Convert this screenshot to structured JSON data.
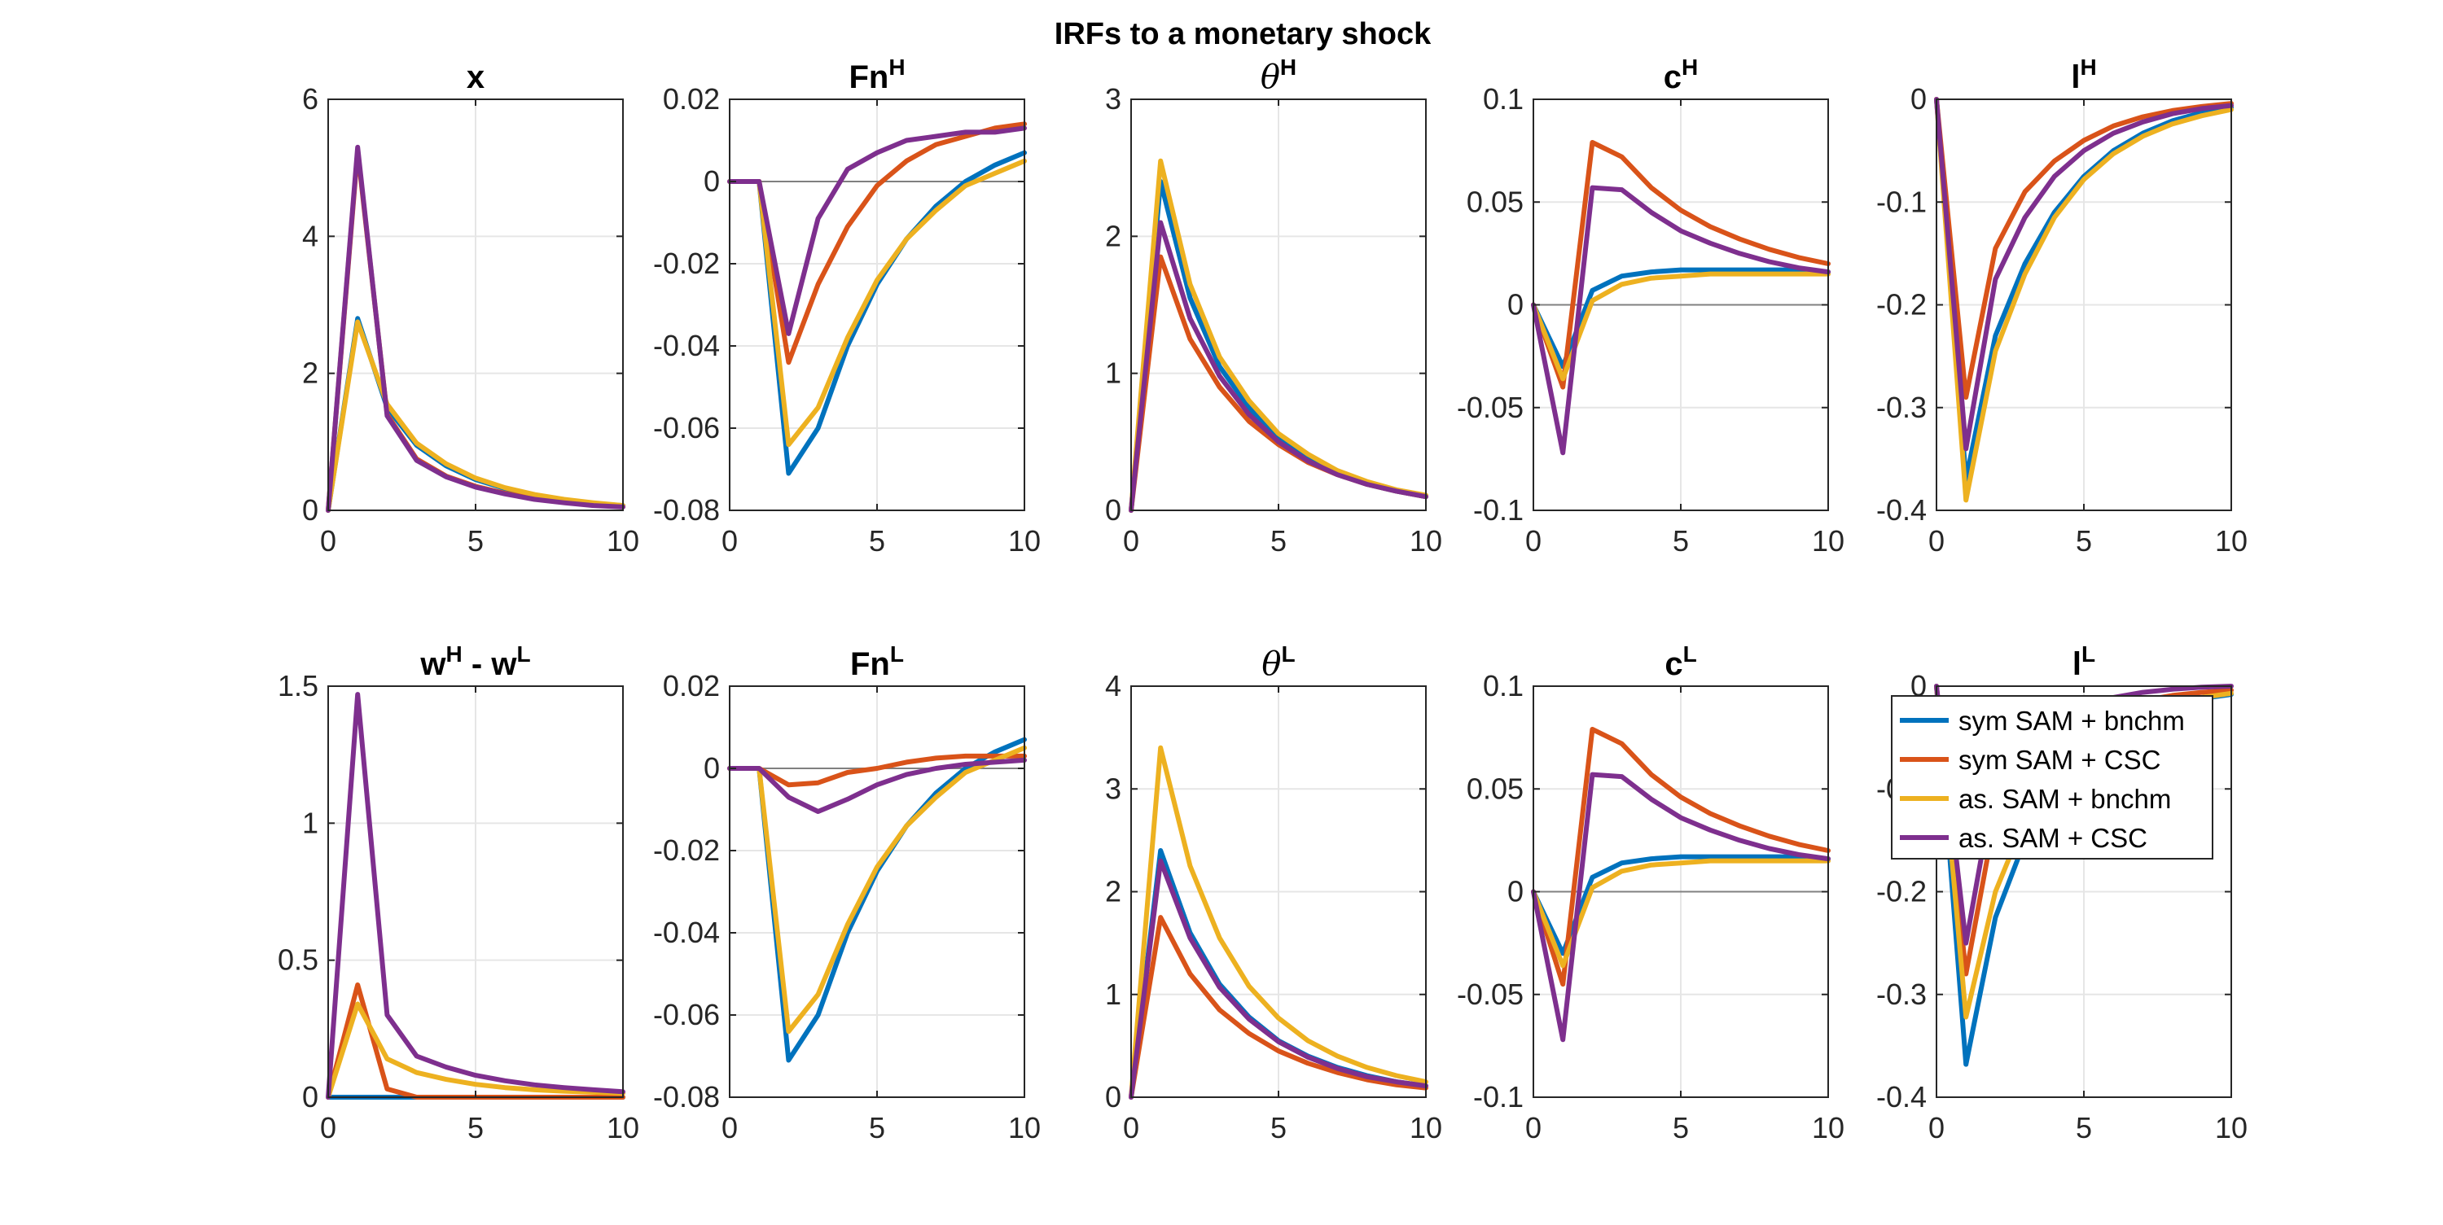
{
  "figure_title": "IRFs to a monetary shock",
  "colors": {
    "sym_bnchm": "#0072BD",
    "sym_csc": "#D95319",
    "as_bnchm": "#EDB120",
    "as_csc": "#7E2F8E",
    "axis": "#262626",
    "grid": "#e6e6e6",
    "zero_line": "#808080"
  },
  "legend": {
    "location": "right, over bottom row lower-right panels",
    "entries": [
      "sym SAM + bnchm",
      "sym SAM + CSC",
      "as. SAM + bnchm",
      "as. SAM + CSC"
    ]
  },
  "chart_data": [
    {
      "type": "line",
      "title": "x",
      "title_parts": {
        "base": "x",
        "sup": ""
      },
      "xlim": [
        0,
        10
      ],
      "ylim": [
        0,
        6
      ],
      "xticks": [
        "0",
        "5",
        "10"
      ],
      "yticks": [
        "0",
        "2",
        "4",
        "6"
      ],
      "x": [
        0,
        1,
        2,
        3,
        4,
        5,
        6,
        7,
        8,
        9,
        10
      ],
      "series": [
        {
          "name": "sym SAM + bnchm",
          "values": [
            0,
            2.8,
            1.5,
            0.95,
            0.65,
            0.45,
            0.32,
            0.22,
            0.15,
            0.1,
            0.07
          ]
        },
        {
          "name": "sym SAM + CSC",
          "values": [
            0,
            5.25,
            1.4,
            0.75,
            0.5,
            0.35,
            0.25,
            0.17,
            0.12,
            0.08,
            0.05
          ]
        },
        {
          "name": "as. SAM + bnchm",
          "values": [
            0,
            2.75,
            1.55,
            0.98,
            0.68,
            0.47,
            0.33,
            0.23,
            0.16,
            0.11,
            0.07
          ]
        },
        {
          "name": "as. SAM + CSC",
          "values": [
            0,
            5.3,
            1.38,
            0.73,
            0.49,
            0.34,
            0.24,
            0.16,
            0.11,
            0.07,
            0.05
          ]
        }
      ]
    },
    {
      "type": "line",
      "title": "FnH",
      "title_parts": {
        "base": "Fn",
        "sup": "H"
      },
      "xlim": [
        0,
        10
      ],
      "ylim": [
        -0.08,
        0.02
      ],
      "zero_line": true,
      "xticks": [
        "0",
        "5",
        "10"
      ],
      "yticks": [
        "-0.08",
        "-0.06",
        "-0.04",
        "-0.02",
        "0",
        "0.02"
      ],
      "x": [
        0,
        1,
        2,
        3,
        4,
        5,
        6,
        7,
        8,
        9,
        10
      ],
      "series": [
        {
          "name": "sym SAM + bnchm",
          "values": [
            0,
            0,
            -0.071,
            -0.06,
            -0.04,
            -0.025,
            -0.014,
            -0.006,
            0.0,
            0.004,
            0.007
          ]
        },
        {
          "name": "sym SAM + CSC",
          "values": [
            0,
            0,
            -0.044,
            -0.025,
            -0.011,
            -0.001,
            0.005,
            0.009,
            0.011,
            0.013,
            0.014
          ]
        },
        {
          "name": "as. SAM + bnchm",
          "values": [
            0,
            0,
            -0.064,
            -0.055,
            -0.038,
            -0.024,
            -0.014,
            -0.007,
            -0.001,
            0.002,
            0.005
          ]
        },
        {
          "name": "as. SAM + CSC",
          "values": [
            0,
            0,
            -0.037,
            -0.009,
            0.003,
            0.007,
            0.01,
            0.011,
            0.012,
            0.012,
            0.013
          ]
        }
      ]
    },
    {
      "type": "line",
      "title": "θH",
      "title_parts": {
        "base": "θ",
        "sup": "H"
      },
      "greek": true,
      "xlim": [
        0,
        10
      ],
      "ylim": [
        0,
        3
      ],
      "xticks": [
        "0",
        "5",
        "10"
      ],
      "yticks": [
        "0",
        "1",
        "2",
        "3"
      ],
      "x": [
        0,
        1,
        2,
        3,
        4,
        5,
        6,
        7,
        8,
        9,
        10
      ],
      "series": [
        {
          "name": "sym SAM + bnchm",
          "values": [
            0,
            2.4,
            1.55,
            1.05,
            0.75,
            0.52,
            0.38,
            0.27,
            0.19,
            0.14,
            0.1
          ]
        },
        {
          "name": "sym SAM + CSC",
          "values": [
            0,
            1.85,
            1.25,
            0.9,
            0.65,
            0.48,
            0.35,
            0.26,
            0.19,
            0.14,
            0.1
          ]
        },
        {
          "name": "as. SAM + bnchm",
          "values": [
            0,
            2.55,
            1.65,
            1.12,
            0.8,
            0.56,
            0.41,
            0.29,
            0.21,
            0.15,
            0.11
          ]
        },
        {
          "name": "as. SAM + CSC",
          "values": [
            0,
            2.1,
            1.4,
            0.98,
            0.7,
            0.5,
            0.36,
            0.26,
            0.19,
            0.14,
            0.1
          ]
        }
      ]
    },
    {
      "type": "line",
      "title": "cH",
      "title_parts": {
        "base": "c",
        "sup": "H"
      },
      "xlim": [
        0,
        10
      ],
      "ylim": [
        -0.1,
        0.1
      ],
      "zero_line": true,
      "xticks": [
        "0",
        "5",
        "10"
      ],
      "yticks": [
        "-0.1",
        "-0.05",
        "0",
        "0.05",
        "0.1"
      ],
      "x": [
        0,
        1,
        2,
        3,
        4,
        5,
        6,
        7,
        8,
        9,
        10
      ],
      "series": [
        {
          "name": "sym SAM + bnchm",
          "values": [
            0,
            -0.03,
            0.007,
            0.014,
            0.016,
            0.017,
            0.017,
            0.017,
            0.017,
            0.017,
            0.016
          ]
        },
        {
          "name": "sym SAM + CSC",
          "values": [
            0,
            -0.04,
            0.079,
            0.072,
            0.057,
            0.046,
            0.038,
            0.032,
            0.027,
            0.023,
            0.02
          ]
        },
        {
          "name": "as. SAM + bnchm",
          "values": [
            0,
            -0.036,
            0.002,
            0.01,
            0.013,
            0.014,
            0.015,
            0.015,
            0.015,
            0.015,
            0.015
          ]
        },
        {
          "name": "as. SAM + CSC",
          "values": [
            0,
            -0.072,
            0.057,
            0.056,
            0.045,
            0.036,
            0.03,
            0.025,
            0.021,
            0.018,
            0.016
          ]
        }
      ]
    },
    {
      "type": "line",
      "title": "lH",
      "title_parts": {
        "base": "l",
        "sup": "H"
      },
      "xlim": [
        0,
        10
      ],
      "ylim": [
        -0.4,
        0
      ],
      "xticks": [
        "0",
        "5",
        "10"
      ],
      "yticks": [
        "-0.4",
        "-0.3",
        "-0.2",
        "-0.1",
        "0"
      ],
      "x": [
        0,
        1,
        2,
        3,
        4,
        5,
        6,
        7,
        8,
        9,
        10
      ],
      "series": [
        {
          "name": "sym SAM + bnchm",
          "values": [
            0,
            -0.37,
            -0.23,
            -0.16,
            -0.11,
            -0.075,
            -0.05,
            -0.033,
            -0.021,
            -0.013,
            -0.008
          ]
        },
        {
          "name": "sym SAM + CSC",
          "values": [
            0,
            -0.29,
            -0.145,
            -0.09,
            -0.06,
            -0.04,
            -0.026,
            -0.017,
            -0.011,
            -0.007,
            -0.004
          ]
        },
        {
          "name": "as. SAM + bnchm",
          "values": [
            0,
            -0.39,
            -0.245,
            -0.17,
            -0.115,
            -0.078,
            -0.053,
            -0.036,
            -0.024,
            -0.016,
            -0.01
          ]
        },
        {
          "name": "as. SAM + CSC",
          "values": [
            0,
            -0.34,
            -0.175,
            -0.115,
            -0.075,
            -0.05,
            -0.033,
            -0.022,
            -0.014,
            -0.009,
            -0.006
          ]
        }
      ]
    },
    {
      "type": "line",
      "title": "wH - wL",
      "title_parts": {
        "base": "w",
        "sup": "H",
        "mid": " - w",
        "sup2": "L"
      },
      "xlim": [
        0,
        10
      ],
      "ylim": [
        0,
        1.5
      ],
      "xticks": [
        "0",
        "5",
        "10"
      ],
      "yticks": [
        "0",
        "0.5",
        "1",
        "1.5"
      ],
      "x": [
        0,
        1,
        2,
        3,
        4,
        5,
        6,
        7,
        8,
        9,
        10
      ],
      "series": [
        {
          "name": "sym SAM + bnchm",
          "values": [
            0,
            0,
            0,
            0,
            0,
            0,
            0,
            0,
            0,
            0,
            0
          ]
        },
        {
          "name": "sym SAM + CSC",
          "values": [
            0,
            0.41,
            0.03,
            0.0,
            0.0,
            0.0,
            0.0,
            0.0,
            0.0,
            0.0,
            0.0
          ]
        },
        {
          "name": "as. SAM + bnchm",
          "values": [
            0,
            0.34,
            0.14,
            0.09,
            0.065,
            0.047,
            0.035,
            0.027,
            0.022,
            0.018,
            0.015
          ]
        },
        {
          "name": "as. SAM + CSC",
          "values": [
            0,
            1.47,
            0.3,
            0.15,
            0.11,
            0.08,
            0.06,
            0.045,
            0.035,
            0.027,
            0.02
          ]
        }
      ]
    },
    {
      "type": "line",
      "title": "FnL",
      "title_parts": {
        "base": "Fn",
        "sup": "L"
      },
      "xlim": [
        0,
        10
      ],
      "ylim": [
        -0.08,
        0.02
      ],
      "zero_line": true,
      "xticks": [
        "0",
        "5",
        "10"
      ],
      "yticks": [
        "-0.08",
        "-0.06",
        "-0.04",
        "-0.02",
        "0",
        "0.02"
      ],
      "x": [
        0,
        1,
        2,
        3,
        4,
        5,
        6,
        7,
        8,
        9,
        10
      ],
      "series": [
        {
          "name": "sym SAM + bnchm",
          "values": [
            0,
            0,
            -0.071,
            -0.06,
            -0.04,
            -0.025,
            -0.014,
            -0.006,
            0.0,
            0.004,
            0.007
          ]
        },
        {
          "name": "sym SAM + CSC",
          "values": [
            0,
            0,
            -0.004,
            -0.0035,
            -0.001,
            0.0,
            0.0015,
            0.0025,
            0.003,
            0.003,
            0.003
          ]
        },
        {
          "name": "as. SAM + bnchm",
          "values": [
            0,
            0,
            -0.064,
            -0.055,
            -0.038,
            -0.024,
            -0.014,
            -0.007,
            -0.001,
            0.002,
            0.005
          ]
        },
        {
          "name": "as. SAM + CSC",
          "values": [
            0,
            0,
            -0.007,
            -0.0105,
            -0.0075,
            -0.004,
            -0.0015,
            0.0,
            0.001,
            0.0015,
            0.002
          ]
        }
      ]
    },
    {
      "type": "line",
      "title": "θL",
      "title_parts": {
        "base": "θ",
        "sup": "L"
      },
      "greek": true,
      "xlim": [
        0,
        10
      ],
      "ylim": [
        0,
        4
      ],
      "xticks": [
        "0",
        "5",
        "10"
      ],
      "yticks": [
        "0",
        "1",
        "2",
        "3",
        "4"
      ],
      "x": [
        0,
        1,
        2,
        3,
        4,
        5,
        6,
        7,
        8,
        9,
        10
      ],
      "series": [
        {
          "name": "sym SAM + bnchm",
          "values": [
            0,
            2.4,
            1.6,
            1.1,
            0.78,
            0.55,
            0.4,
            0.29,
            0.21,
            0.15,
            0.11
          ]
        },
        {
          "name": "sym SAM + CSC",
          "values": [
            0,
            1.75,
            1.2,
            0.85,
            0.62,
            0.45,
            0.33,
            0.24,
            0.17,
            0.12,
            0.09
          ]
        },
        {
          "name": "as. SAM + bnchm",
          "values": [
            0,
            3.4,
            2.25,
            1.55,
            1.08,
            0.77,
            0.55,
            0.4,
            0.29,
            0.21,
            0.15
          ]
        },
        {
          "name": "as. SAM + CSC",
          "values": [
            0,
            2.3,
            1.55,
            1.07,
            0.76,
            0.54,
            0.39,
            0.28,
            0.2,
            0.15,
            0.11
          ]
        }
      ]
    },
    {
      "type": "line",
      "title": "cL",
      "title_parts": {
        "base": "c",
        "sup": "L"
      },
      "xlim": [
        0,
        10
      ],
      "ylim": [
        -0.1,
        0.1
      ],
      "zero_line": true,
      "xticks": [
        "0",
        "5",
        "10"
      ],
      "yticks": [
        "-0.1",
        "-0.05",
        "0",
        "0.05",
        "0.1"
      ],
      "x": [
        0,
        1,
        2,
        3,
        4,
        5,
        6,
        7,
        8,
        9,
        10
      ],
      "series": [
        {
          "name": "sym SAM + bnchm",
          "values": [
            0,
            -0.03,
            0.007,
            0.014,
            0.016,
            0.017,
            0.017,
            0.017,
            0.017,
            0.017,
            0.016
          ]
        },
        {
          "name": "sym SAM + CSC",
          "values": [
            0,
            -0.045,
            0.079,
            0.072,
            0.057,
            0.046,
            0.038,
            0.032,
            0.027,
            0.023,
            0.02
          ]
        },
        {
          "name": "as. SAM + bnchm",
          "values": [
            0,
            -0.036,
            0.002,
            0.01,
            0.013,
            0.014,
            0.015,
            0.015,
            0.015,
            0.015,
            0.015
          ]
        },
        {
          "name": "as. SAM + CSC",
          "values": [
            0,
            -0.072,
            0.057,
            0.056,
            0.045,
            0.036,
            0.03,
            0.025,
            0.021,
            0.018,
            0.016
          ]
        }
      ]
    },
    {
      "type": "line",
      "title": "lL",
      "title_parts": {
        "base": "l",
        "sup": "L"
      },
      "xlim": [
        0,
        10
      ],
      "ylim": [
        -0.4,
        0
      ],
      "xticks": [
        "0",
        "5",
        "10"
      ],
      "yticks": [
        "-0.4",
        "-0.3",
        "-0.2",
        "-0.1",
        "0"
      ],
      "x": [
        0,
        1,
        2,
        3,
        4,
        5,
        6,
        7,
        8,
        9,
        10
      ],
      "series": [
        {
          "name": "sym SAM + bnchm",
          "values": [
            0,
            -0.368,
            -0.225,
            -0.15,
            -0.1,
            -0.066,
            -0.044,
            -0.029,
            -0.019,
            -0.012,
            -0.008
          ]
        },
        {
          "name": "sym SAM + CSC",
          "values": [
            0,
            -0.28,
            -0.125,
            -0.08,
            -0.052,
            -0.034,
            -0.022,
            -0.014,
            -0.009,
            -0.006,
            -0.004
          ]
        },
        {
          "name": "as. SAM + bnchm",
          "values": [
            0,
            -0.322,
            -0.2,
            -0.13,
            -0.09,
            -0.06,
            -0.04,
            -0.026,
            -0.017,
            -0.011,
            -0.007
          ]
        },
        {
          "name": "as. SAM + CSC",
          "values": [
            0,
            -0.25,
            -0.09,
            -0.05,
            -0.03,
            -0.018,
            -0.011,
            -0.006,
            -0.003,
            -0.001,
            0.0
          ]
        }
      ]
    }
  ]
}
